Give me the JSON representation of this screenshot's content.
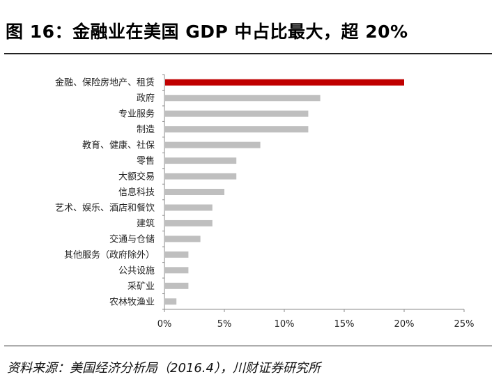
{
  "title": "图 16：金融业在美国 GDP 中占比最大，超 20%",
  "source": "资料来源：美国经济分析局（2016.4），川财证券研究所",
  "chart_data": {
    "type": "bar",
    "orientation": "horizontal",
    "categories": [
      "金融、保险房地产、租赁",
      "政府",
      "专业服务",
      "制造",
      "教育、健康、社保",
      "零售",
      "大额交易",
      "信息科技",
      "艺术、娱乐、酒店和餐饮",
      "建筑",
      "交通与仓储",
      "其他服务（政府除外）",
      "公共设施",
      "采矿业",
      "农林牧渔业"
    ],
    "values": [
      20,
      13,
      12,
      12,
      8,
      6,
      6,
      5,
      4,
      4,
      3,
      2,
      2,
      2,
      1
    ],
    "unit": "%",
    "xlim": [
      0,
      25
    ],
    "xticks": [
      "0%",
      "5%",
      "10%",
      "15%",
      "20%",
      "25%"
    ],
    "grid": false,
    "colors": {
      "highlight": "#c00000",
      "default": "#bfbfbf"
    }
  }
}
